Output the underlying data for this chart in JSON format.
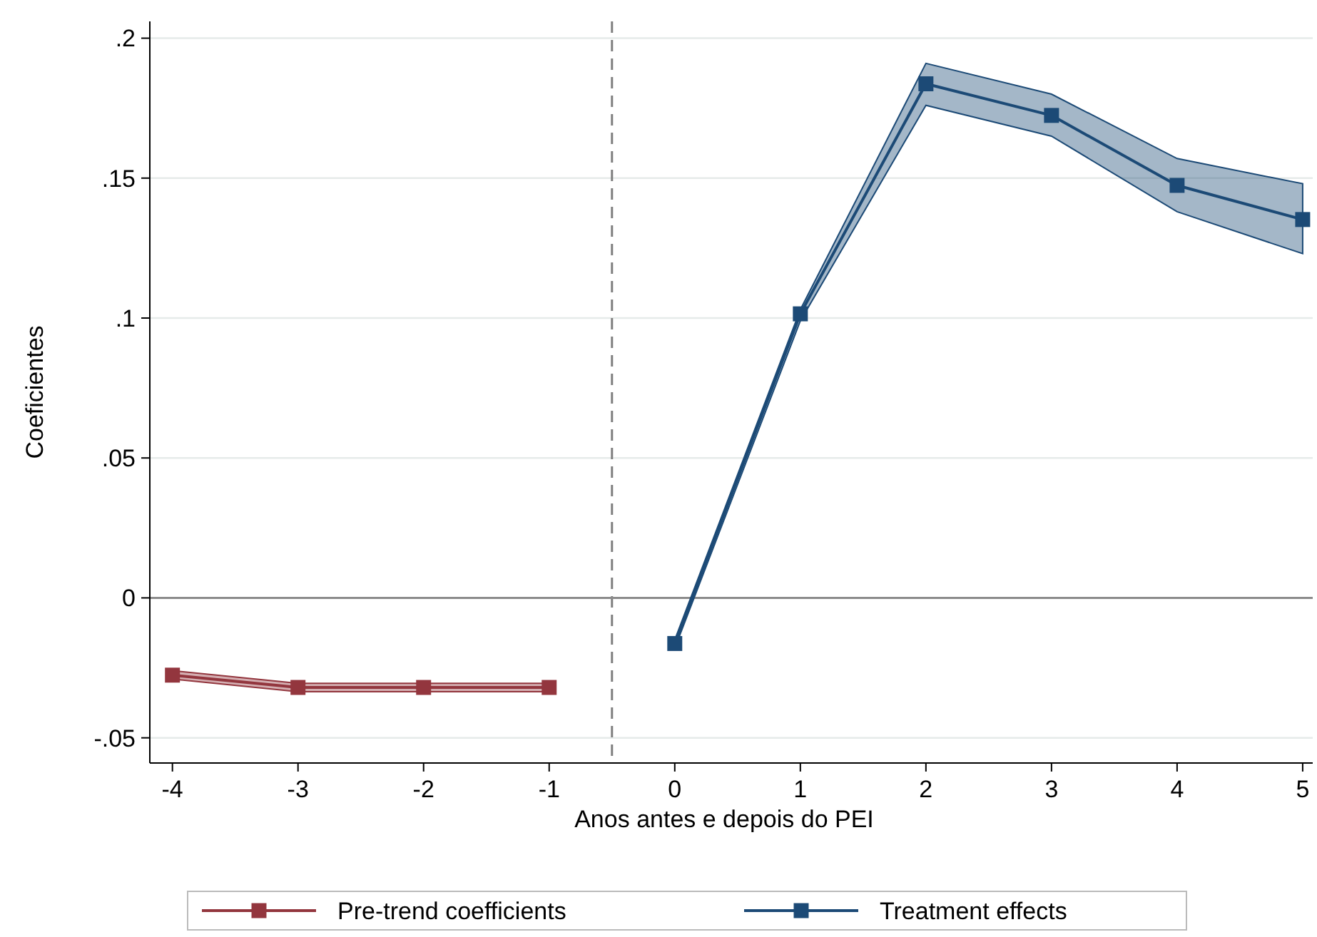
{
  "chart_data": {
    "type": "line",
    "xlabel": "Anos antes e depois do PEI",
    "ylabel": "Coeficientes",
    "xlim": [
      -4.18,
      5.08
    ],
    "ylim": [
      -0.059,
      0.206
    ],
    "xticks": [
      -4,
      -3,
      -2,
      -1,
      0,
      1,
      2,
      3,
      4,
      5
    ],
    "yticks": [
      {
        "value": -0.05,
        "label": "-.05"
      },
      0,
      {
        "value": 0.05,
        "label": ".05"
      },
      {
        "value": 0.1,
        "label": ".1"
      },
      {
        "value": 0.15,
        "label": ".15"
      },
      {
        "value": 0.2,
        "label": ".2"
      }
    ],
    "grid": "y",
    "legend": "bottom",
    "marker": "square",
    "line_style": "solid",
    "ref_lines": [
      {
        "axis": "x",
        "value": -0.5,
        "color": "#7f7f7f",
        "line_style": "dashed"
      },
      {
        "axis": "y",
        "value": 0,
        "color": "#8c8c8c",
        "line_style": "solid"
      }
    ],
    "series": [
      {
        "name": "Pre-trend coefficients",
        "color": "#93363e",
        "x": [
          -4,
          -3,
          -2,
          -1
        ],
        "values": [
          -0.0276,
          -0.032,
          -0.032,
          -0.032
        ],
        "lower": [
          -0.029,
          -0.0335,
          -0.0335,
          -0.0335
        ],
        "upper": [
          -0.026,
          -0.0305,
          -0.0305,
          -0.0305
        ]
      },
      {
        "name": "Treatment effects",
        "color": "#1c4a76",
        "x": [
          0,
          1,
          2,
          3,
          4,
          5
        ],
        "values": [
          -0.0163,
          0.1015,
          0.1837,
          0.1724,
          0.1474,
          0.1352
        ],
        "lower": [
          -0.018,
          0.099,
          0.176,
          0.165,
          0.138,
          0.123
        ],
        "upper": [
          -0.015,
          0.103,
          0.191,
          0.18,
          0.157,
          0.148
        ]
      }
    ]
  }
}
